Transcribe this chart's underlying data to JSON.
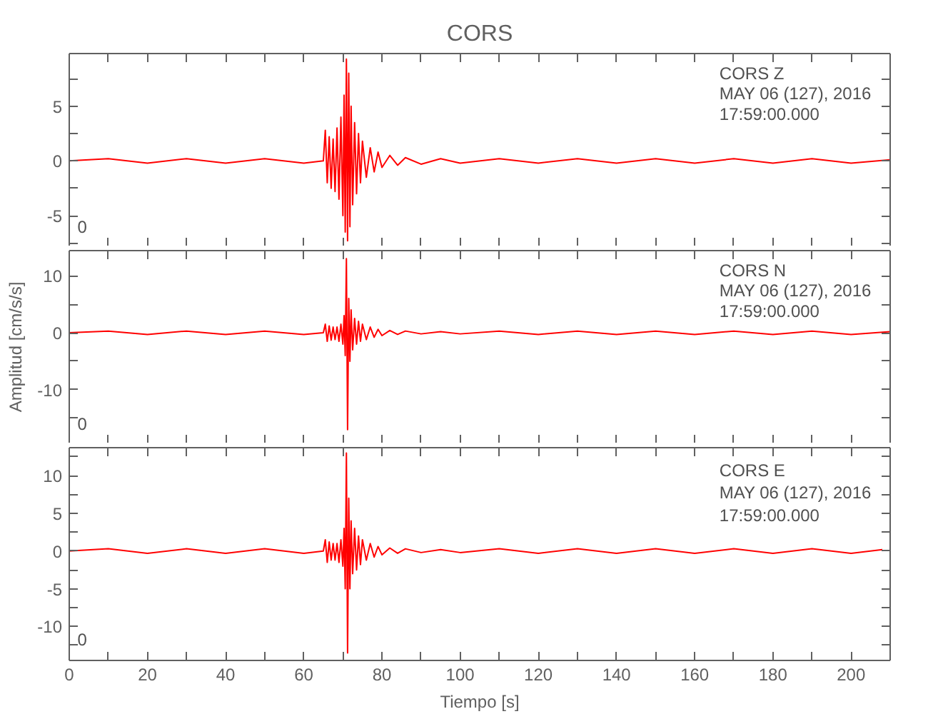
{
  "chart_data": [
    {
      "type": "line",
      "title": "CORS",
      "tick_labels": "y",
      "grid": false,
      "x": [
        0,
        10,
        20,
        30,
        40,
        50,
        60,
        65,
        65.5,
        66,
        66.5,
        67,
        67.5,
        68,
        68.5,
        69,
        69.5,
        70,
        70.3,
        70.6,
        70.9,
        71.2,
        71.5,
        71.8,
        72.1,
        72.5,
        73,
        73.5,
        74,
        74.5,
        75,
        76,
        77,
        78,
        79,
        80,
        82,
        84,
        86,
        90,
        95,
        100,
        110,
        120,
        130,
        140,
        150,
        160,
        170,
        180,
        190,
        200,
        210
      ],
      "series": [
        {
          "color": "#ff0000",
          "values": [
            0,
            0.2,
            -0.2,
            0.2,
            -0.2,
            0.2,
            -0.2,
            0,
            2.8,
            -2,
            2.2,
            -2.5,
            2,
            -2.8,
            3,
            -3.5,
            4,
            -5,
            6,
            -6.5,
            9.3,
            -7.3,
            8,
            -6,
            5,
            -4,
            3.5,
            -3,
            2.5,
            -2,
            1.8,
            -1.5,
            1.2,
            -1,
            0.8,
            -0.6,
            0.5,
            -0.4,
            0.3,
            -0.3,
            0.2,
            -0.2,
            0.2,
            -0.2,
            0.2,
            -0.2,
            0.2,
            -0.2,
            0.2,
            -0.2,
            0.2,
            -0.2,
            0.1
          ]
        }
      ],
      "xlim": [
        0,
        210
      ],
      "ylim": [
        -7.8,
        9.8
      ],
      "xticks": [
        0,
        {
          "value": 10,
          "label": null
        },
        20,
        {
          "value": 30,
          "label": null
        },
        40,
        {
          "value": 50,
          "label": null
        },
        60,
        {
          "value": 70,
          "label": null
        },
        80,
        {
          "value": 90,
          "label": null
        },
        100,
        {
          "value": 110,
          "label": null
        },
        120,
        {
          "value": 130,
          "label": null
        },
        140,
        {
          "value": 150,
          "label": null
        },
        160,
        {
          "value": 170,
          "label": null
        },
        180,
        {
          "value": 190,
          "label": null
        },
        200
      ],
      "yticks": [
        {
          "value": -7.5,
          "label": null
        },
        -5,
        {
          "value": -2.5,
          "label": null
        },
        0,
        {
          "value": 2.5,
          "label": null
        },
        5,
        {
          "value": 7.5,
          "label": null
        }
      ],
      "annotations": [
        "CORS   Z",
        "MAY 06 (127), 2016",
        "17:59:00.000",
        "0"
      ]
    },
    {
      "type": "line",
      "ylabel": "Amplitud [cm/s/s]",
      "tick_labels": "y",
      "grid": false,
      "x": [
        0,
        10,
        20,
        30,
        40,
        50,
        60,
        65,
        65.5,
        66,
        66.5,
        67,
        67.5,
        68,
        68.5,
        69,
        69.5,
        70,
        70.3,
        70.6,
        70.9,
        71.2,
        71.5,
        71.8,
        72.1,
        72.5,
        73,
        73.5,
        74,
        74.5,
        75,
        76,
        77,
        78,
        79,
        80,
        82,
        84,
        86,
        90,
        95,
        100,
        110,
        120,
        130,
        140,
        150,
        160,
        170,
        180,
        190,
        200,
        210
      ],
      "series": [
        {
          "color": "#ff0000",
          "values": [
            0,
            0.3,
            -0.3,
            0.3,
            -0.3,
            0.3,
            -0.3,
            0,
            1.5,
            -1.5,
            1.2,
            -1.3,
            1,
            -1.2,
            1,
            -1.5,
            1.5,
            -2,
            3,
            -4,
            13,
            -17,
            6,
            -5,
            4,
            -3,
            2.5,
            -2,
            2,
            -1.5,
            1.5,
            -1.2,
            1,
            -0.8,
            0.6,
            -0.5,
            0.4,
            -0.3,
            0.3,
            -0.2,
            0.2,
            -0.2,
            0.3,
            -0.3,
            0.3,
            -0.3,
            0.3,
            -0.3,
            0.3,
            -0.3,
            0.3,
            -0.3,
            0.2
          ]
        }
      ],
      "xlim": [
        0,
        210
      ],
      "ylim": [
        -19.4,
        14.4
      ],
      "xticks": [
        0,
        {
          "value": 10,
          "label": null
        },
        20,
        {
          "value": 30,
          "label": null
        },
        40,
        {
          "value": 50,
          "label": null
        },
        60,
        {
          "value": 70,
          "label": null
        },
        80,
        {
          "value": 90,
          "label": null
        },
        100,
        {
          "value": 110,
          "label": null
        },
        120,
        {
          "value": 130,
          "label": null
        },
        140,
        {
          "value": 150,
          "label": null
        },
        160,
        {
          "value": 170,
          "label": null
        },
        180,
        {
          "value": 190,
          "label": null
        },
        200
      ],
      "yticks": [
        {
          "value": -15,
          "label": null
        },
        -10,
        {
          "value": -5,
          "label": null
        },
        0,
        {
          "value": 5,
          "label": null
        },
        10
      ],
      "annotations": [
        "CORS   N",
        "MAY 06 (127), 2016",
        "17:59:00.000",
        "0"
      ]
    },
    {
      "type": "line",
      "xlabel": "Tiempo [s]",
      "grid": false,
      "x": [
        0,
        10,
        20,
        30,
        40,
        50,
        60,
        65,
        65.5,
        66,
        66.5,
        67,
        67.5,
        68,
        68.5,
        69,
        69.5,
        70,
        70.3,
        70.6,
        70.9,
        71.2,
        71.5,
        71.8,
        72.1,
        72.5,
        73,
        73.5,
        74,
        74.5,
        75,
        76,
        77,
        78,
        79,
        80,
        82,
        84,
        86,
        90,
        95,
        100,
        110,
        120,
        130,
        140,
        150,
        160,
        170,
        180,
        190,
        200,
        208
      ],
      "series": [
        {
          "color": "#ff0000",
          "values": [
            0,
            0.3,
            -0.3,
            0.3,
            -0.3,
            0.3,
            -0.3,
            0,
            1.5,
            -1.5,
            1.2,
            -1.2,
            1,
            -1.2,
            1,
            -1.5,
            1.5,
            -2,
            3,
            -5,
            13,
            -13.5,
            7,
            -5,
            4,
            -3,
            3,
            -2.5,
            2,
            -1.8,
            1.5,
            -1.2,
            1,
            -0.8,
            0.6,
            -0.5,
            0.4,
            -0.3,
            0.3,
            -0.2,
            0.2,
            -0.2,
            0.3,
            -0.3,
            0.3,
            -0.3,
            0.3,
            -0.3,
            0.3,
            -0.3,
            0.3,
            -0.3,
            0.2
          ]
        }
      ],
      "xlim": [
        0,
        210
      ],
      "ylim": [
        -14.5,
        13.7
      ],
      "xticks": [
        0,
        {
          "value": 10,
          "label": null
        },
        20,
        {
          "value": 30,
          "label": null
        },
        40,
        {
          "value": 50,
          "label": null
        },
        60,
        {
          "value": 70,
          "label": null
        },
        80,
        {
          "value": 90,
          "label": null
        },
        100,
        {
          "value": 110,
          "label": null
        },
        120,
        {
          "value": 130,
          "label": null
        },
        140,
        {
          "value": 150,
          "label": null
        },
        160,
        {
          "value": 170,
          "label": null
        },
        180,
        {
          "value": 190,
          "label": null
        },
        200
      ],
      "yticks": [
        {
          "value": -12.5,
          "label": null
        },
        -10,
        {
          "value": -7.5,
          "label": null
        },
        -5,
        {
          "value": -2.5,
          "label": null
        },
        0,
        {
          "value": 2.5,
          "label": null
        },
        5,
        {
          "value": 7.5,
          "label": null
        },
        10,
        {
          "value": 12.5,
          "label": null
        }
      ],
      "annotations": [
        "CORS   E",
        "MAY 06 (127), 2016",
        "17:59:00.000",
        "0"
      ]
    }
  ]
}
